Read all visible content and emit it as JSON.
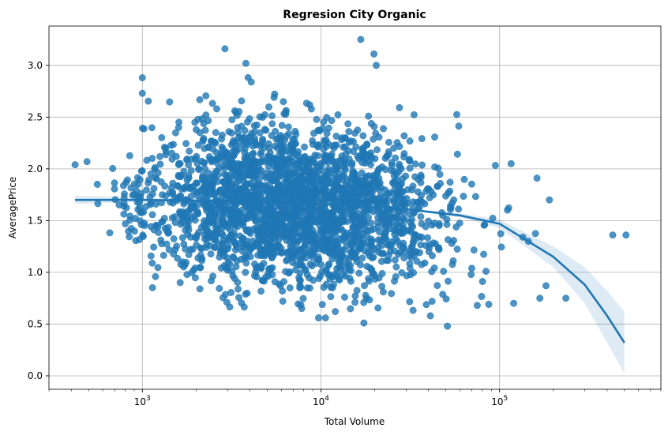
{
  "chart_data": {
    "type": "scatter",
    "title": "Regresion City Organic",
    "xlabel": "Total Volume",
    "ylabel": "AveragePrice",
    "x_scale": "log",
    "xlim": [
      300,
      800000
    ],
    "ylim": [
      -0.13,
      3.38
    ],
    "x_ticks": [
      {
        "value": 1000,
        "base": "10",
        "exp": "3"
      },
      {
        "value": 10000,
        "base": "10",
        "exp": "4"
      },
      {
        "value": 100000,
        "base": "10",
        "exp": "5"
      }
    ],
    "y_ticks": [
      {
        "value": 0.0,
        "label": "0.0"
      },
      {
        "value": 0.5,
        "label": "0.5"
      },
      {
        "value": 1.0,
        "label": "1.0"
      },
      {
        "value": 1.5,
        "label": "1.5"
      },
      {
        "value": 2.0,
        "label": "2.0"
      },
      {
        "value": 2.5,
        "label": "2.5"
      },
      {
        "value": 3.0,
        "label": "3.0"
      }
    ],
    "grid": true,
    "point_color": "#1f77b4",
    "line_color": "#1f77b4",
    "band_color": "#1f77b4",
    "outlier_points": [
      {
        "x": 420,
        "y": 2.04
      },
      {
        "x": 490,
        "y": 2.07
      },
      {
        "x": 560,
        "y": 1.85
      },
      {
        "x": 1000,
        "y": 2.88
      },
      {
        "x": 1000,
        "y": 2.73
      },
      {
        "x": 2100,
        "y": 0.84
      },
      {
        "x": 2900,
        "y": 3.16
      },
      {
        "x": 3800,
        "y": 3.02
      },
      {
        "x": 7800,
        "y": 0.65
      },
      {
        "x": 9700,
        "y": 0.56
      },
      {
        "x": 10600,
        "y": 0.56
      },
      {
        "x": 16700,
        "y": 3.25
      },
      {
        "x": 17400,
        "y": 0.51
      },
      {
        "x": 19800,
        "y": 3.11
      },
      {
        "x": 20400,
        "y": 3.0
      },
      {
        "x": 41000,
        "y": 0.58
      },
      {
        "x": 51000,
        "y": 0.48
      },
      {
        "x": 116000,
        "y": 2.05
      },
      {
        "x": 135000,
        "y": 1.34
      },
      {
        "x": 145000,
        "y": 1.3
      },
      {
        "x": 162000,
        "y": 1.91
      },
      {
        "x": 168000,
        "y": 0.75
      },
      {
        "x": 182000,
        "y": 0.87
      },
      {
        "x": 190000,
        "y": 1.7
      },
      {
        "x": 235000,
        "y": 0.75
      },
      {
        "x": 430000,
        "y": 1.36
      },
      {
        "x": 510000,
        "y": 1.36
      },
      {
        "x": 87000,
        "y": 0.69
      },
      {
        "x": 120000,
        "y": 0.7
      },
      {
        "x": 75000,
        "y": 0.68
      }
    ],
    "regression_line": [
      {
        "x": 420,
        "y": 1.7
      },
      {
        "x": 1000,
        "y": 1.7
      },
      {
        "x": 3000,
        "y": 1.69
      },
      {
        "x": 10000,
        "y": 1.66
      },
      {
        "x": 30000,
        "y": 1.61
      },
      {
        "x": 60000,
        "y": 1.55
      },
      {
        "x": 100000,
        "y": 1.47
      },
      {
        "x": 200000,
        "y": 1.15
      },
      {
        "x": 300000,
        "y": 0.88
      },
      {
        "x": 400000,
        "y": 0.58
      },
      {
        "x": 500000,
        "y": 0.32
      }
    ],
    "confidence_band": [
      {
        "x": 420,
        "lo": 1.66,
        "hi": 1.74
      },
      {
        "x": 1000,
        "lo": 1.68,
        "hi": 1.72
      },
      {
        "x": 3000,
        "lo": 1.68,
        "hi": 1.7
      },
      {
        "x": 10000,
        "lo": 1.65,
        "hi": 1.67
      },
      {
        "x": 30000,
        "lo": 1.6,
        "hi": 1.62
      },
      {
        "x": 60000,
        "lo": 1.53,
        "hi": 1.57
      },
      {
        "x": 100000,
        "lo": 1.43,
        "hi": 1.51
      },
      {
        "x": 200000,
        "lo": 1.05,
        "hi": 1.25
      },
      {
        "x": 300000,
        "lo": 0.7,
        "hi": 1.05
      },
      {
        "x": 400000,
        "lo": 0.32,
        "hi": 0.82
      },
      {
        "x": 500000,
        "lo": 0.02,
        "hi": 0.62
      }
    ]
  }
}
